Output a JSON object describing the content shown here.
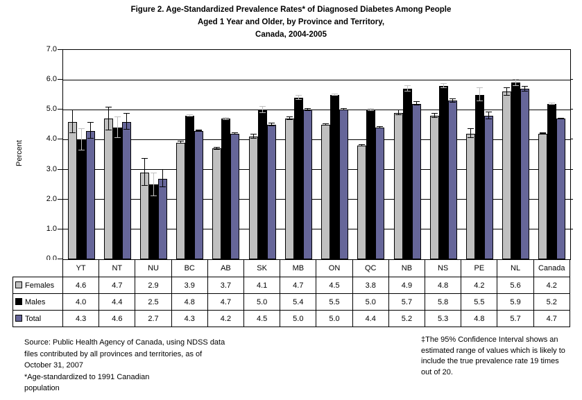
{
  "chart_data": {
    "type": "bar",
    "title": "Figure 2. Age-Standardized Prevalence Rates* of Diagnosed Diabetes Among People Aged 1 Year and Older, by Province and Territory, Canada, 2004-2005",
    "title_lines": [
      "Figure 2. Age-Standardized Prevalence Rates* of Diagnosed Diabetes Among People",
      "Aged 1 Year and Older, by Province and Territory,",
      "Canada, 2004-2005"
    ],
    "ylabel": "Percent",
    "xlabel": "",
    "ylim": [
      0,
      7
    ],
    "ytick_interval": 1.0,
    "ytick_labels": [
      "0.0",
      "1.0",
      "2.0",
      "3.0",
      "4.0",
      "5.0",
      "6.0",
      "7.0"
    ],
    "grid": true,
    "plot_background": "#ffffff",
    "axis_color": "#000000",
    "legend_position": "table-left",
    "categories": [
      "YT",
      "NT",
      "NU",
      "BC",
      "AB",
      "SK",
      "MB",
      "ON",
      "QC",
      "NB",
      "NS",
      "PE",
      "NL",
      "Canada"
    ],
    "series": [
      {
        "name": "Females",
        "color": "#c0c0c0",
        "border_color": "#000000",
        "error_bar_color": "#000000",
        "values": [
          4.6,
          4.7,
          2.9,
          3.9,
          3.7,
          4.1,
          4.7,
          4.5,
          3.8,
          4.9,
          4.8,
          4.2,
          5.6,
          4.2
        ],
        "ci_half_width_est": [
          0.38,
          0.38,
          0.45,
          0.03,
          0.03,
          0.07,
          0.05,
          0.02,
          0.02,
          0.08,
          0.07,
          0.15,
          0.12,
          0.01
        ]
      },
      {
        "name": "Males",
        "color": "#000000",
        "border_color": "#000000",
        "error_bar_color": "#c0c0c0",
        "values": [
          4.0,
          4.4,
          2.5,
          4.8,
          4.7,
          5.0,
          5.4,
          5.5,
          5.0,
          5.7,
          5.8,
          5.5,
          5.9,
          5.2
        ],
        "ci_half_width_est": [
          0.35,
          0.35,
          0.38,
          0.03,
          0.03,
          0.1,
          0.07,
          0.02,
          0.03,
          0.1,
          0.07,
          0.22,
          0.1,
          0.02
        ]
      },
      {
        "name": "Total",
        "color": "#666699",
        "border_color": "#000000",
        "error_bar_color": "#000000",
        "values": [
          4.3,
          4.6,
          2.7,
          4.3,
          4.2,
          4.5,
          5.0,
          5.0,
          4.4,
          5.2,
          5.3,
          4.8,
          5.7,
          4.7
        ],
        "ci_half_width_est": [
          0.27,
          0.27,
          0.3,
          0.02,
          0.02,
          0.05,
          0.04,
          0.02,
          0.02,
          0.06,
          0.05,
          0.12,
          0.08,
          0.01
        ]
      }
    ]
  },
  "footnotes": {
    "left": "Source: Public Health Agency of Canada, using NDSS data\nfiles contributed by all provinces and territories, as of\nOctober 31, 2007\n*Age-standardized to 1991 Canadian\npopulation",
    "right": "‡The 95% Confidence Interval shows an\nestimated range of values which is likely to\ninclude the true prevalence rate 19 times\nout of 20."
  }
}
